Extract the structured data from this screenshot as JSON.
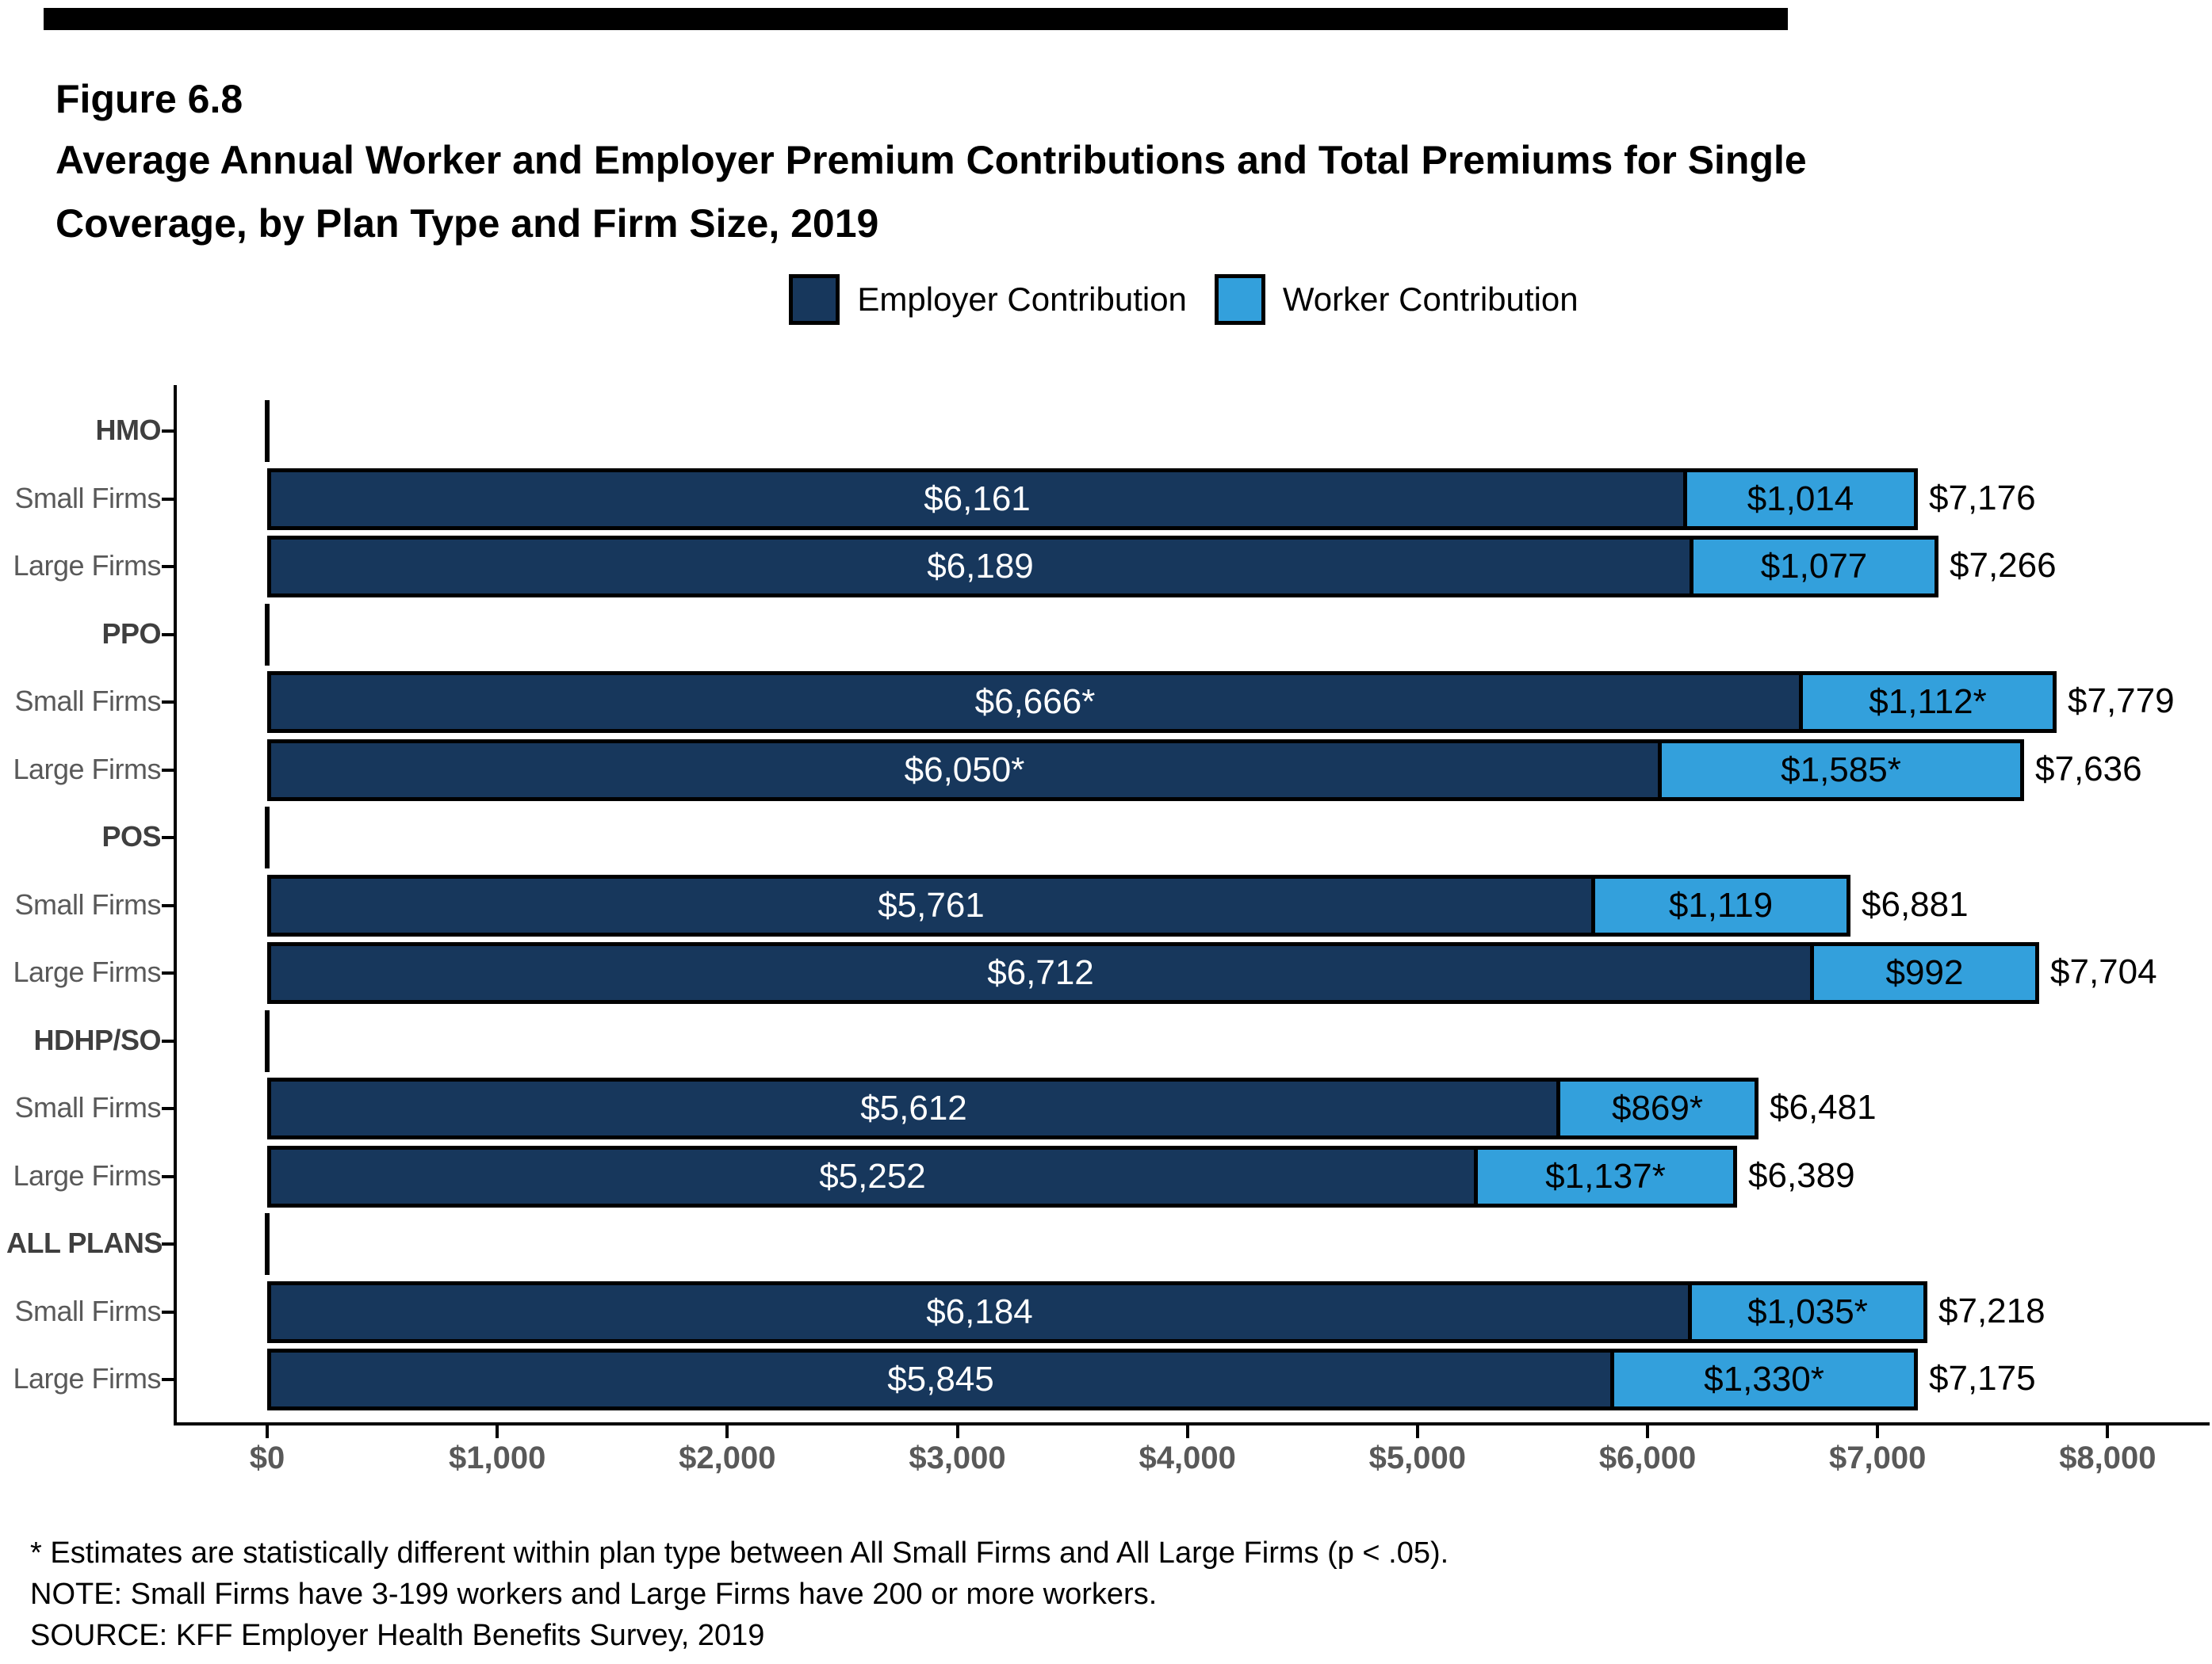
{
  "header": {
    "figure_label": "Figure 6.8",
    "title_line1": "Average Annual Worker and Employer Premium Contributions and Total Premiums for Single",
    "title_line2": "Coverage, by Plan Type and Firm Size, 2019"
  },
  "legend": {
    "items": [
      {
        "label": "Employer Contribution",
        "color": "#17375C"
      },
      {
        "label": "Worker Contribution",
        "color": "#33A0DC"
      }
    ]
  },
  "colors": {
    "employer": "#17375C",
    "worker": "#33A0DC",
    "axis_text": "#595959",
    "group_text": "#3F3F3F"
  },
  "chart_data": {
    "type": "bar",
    "orientation": "horizontal",
    "stacked": true,
    "series_names": [
      "Employer Contribution",
      "Worker Contribution"
    ],
    "x_axis": {
      "min": 0,
      "max": 8000,
      "tick_labels": [
        "$0",
        "$1,000",
        "$2,000",
        "$3,000",
        "$4,000",
        "$5,000",
        "$6,000",
        "$7,000",
        "$8,000"
      ]
    },
    "rows": [
      {
        "type": "group",
        "label": "HMO"
      },
      {
        "type": "bar",
        "label": "Small Firms",
        "employer": 6161,
        "worker": 1014,
        "total": 7176,
        "employer_label": "$6,161",
        "worker_label": "$1,014",
        "total_label": "$7,176"
      },
      {
        "type": "bar",
        "label": "Large Firms",
        "employer": 6189,
        "worker": 1077,
        "total": 7266,
        "employer_label": "$6,189",
        "worker_label": "$1,077",
        "total_label": "$7,266"
      },
      {
        "type": "group",
        "label": "PPO"
      },
      {
        "type": "bar",
        "label": "Small Firms",
        "employer": 6666,
        "worker": 1112,
        "total": 7779,
        "employer_label": "$6,666*",
        "worker_label": "$1,112*",
        "total_label": "$7,779"
      },
      {
        "type": "bar",
        "label": "Large Firms",
        "employer": 6050,
        "worker": 1585,
        "total": 7636,
        "employer_label": "$6,050*",
        "worker_label": "$1,585*",
        "total_label": "$7,636"
      },
      {
        "type": "group",
        "label": "POS"
      },
      {
        "type": "bar",
        "label": "Small Firms",
        "employer": 5761,
        "worker": 1119,
        "total": 6881,
        "employer_label": "$5,761",
        "worker_label": "$1,119",
        "total_label": "$6,881"
      },
      {
        "type": "bar",
        "label": "Large Firms",
        "employer": 6712,
        "worker": 992,
        "total": 7704,
        "employer_label": "$6,712",
        "worker_label": "$992",
        "total_label": "$7,704"
      },
      {
        "type": "group",
        "label": "HDHP/SO"
      },
      {
        "type": "bar",
        "label": "Small Firms",
        "employer": 5612,
        "worker": 869,
        "total": 6481,
        "employer_label": "$5,612",
        "worker_label": "$869*",
        "total_label": "$6,481"
      },
      {
        "type": "bar",
        "label": "Large Firms",
        "employer": 5252,
        "worker": 1137,
        "total": 6389,
        "employer_label": "$5,252",
        "worker_label": "$1,137*",
        "total_label": "$6,389"
      },
      {
        "type": "group",
        "label": "ALL PLANS"
      },
      {
        "type": "bar",
        "label": "Small Firms",
        "employer": 6184,
        "worker": 1035,
        "total": 7218,
        "employer_label": "$6,184",
        "worker_label": "$1,035*",
        "total_label": "$7,218"
      },
      {
        "type": "bar",
        "label": "Large Firms",
        "employer": 5845,
        "worker": 1330,
        "total": 7175,
        "employer_label": "$5,845",
        "worker_label": "$1,330*",
        "total_label": "$7,175"
      }
    ]
  },
  "footnotes": [
    "* Estimates are statistically different within plan type between All Small Firms and All Large Firms (p < .05).",
    "NOTE: Small Firms have 3-199 workers and Large Firms have 200 or more workers.",
    "SOURCE: KFF Employer Health Benefits Survey, 2019"
  ]
}
